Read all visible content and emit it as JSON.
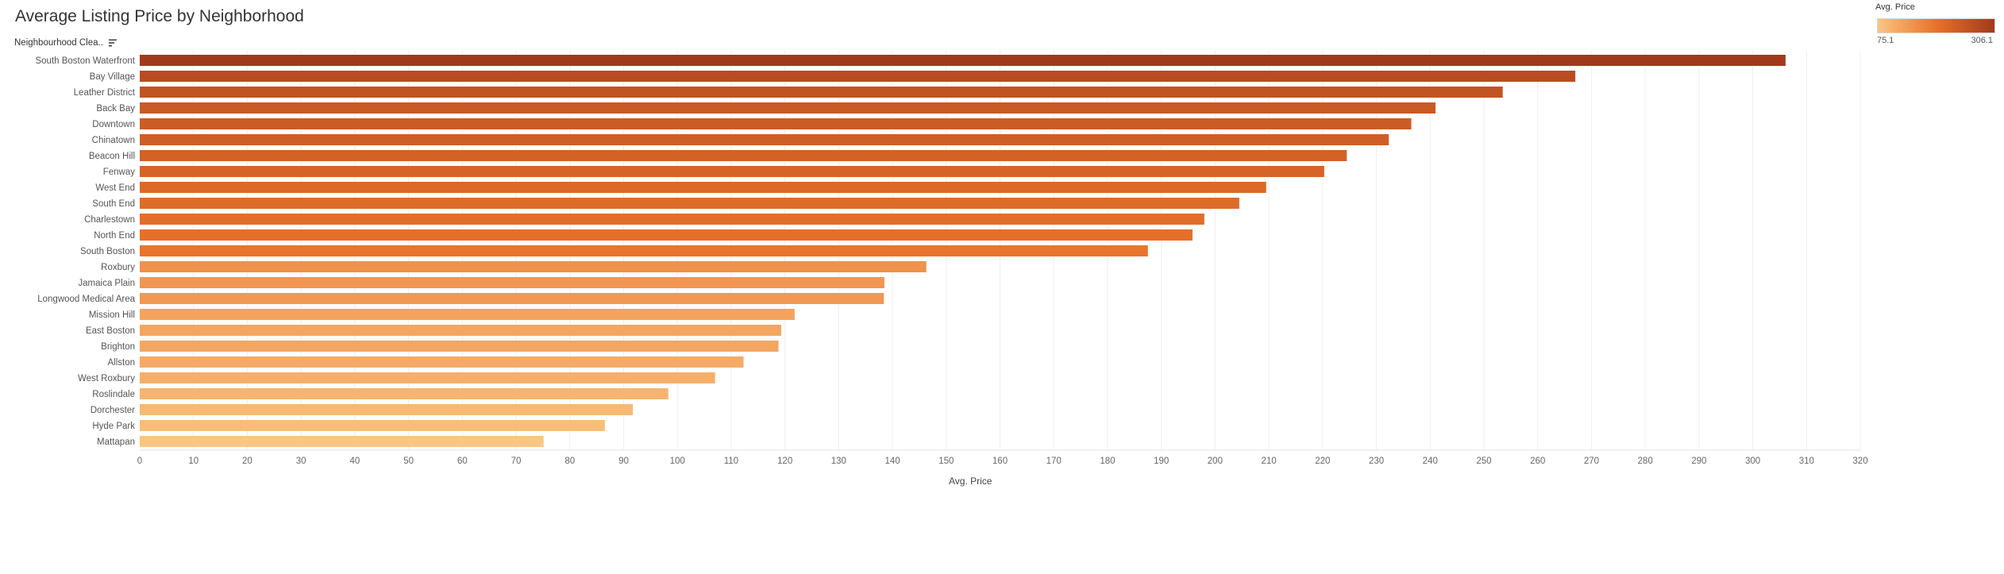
{
  "title": "Average Listing Price by Neighborhood",
  "row_header": "Neighbourhood Clea..",
  "legend": {
    "title": "Avg. Price",
    "min_label": "75.1",
    "max_label": "306.1",
    "color_low": "#fbc582",
    "color_mid": "#e8722a",
    "color_high": "#a13a1c"
  },
  "chart_data": {
    "type": "bar",
    "orientation": "horizontal",
    "title": "Average Listing Price by Neighborhood",
    "xlabel": "Avg. Price",
    "ylabel": "Neighbourhood Clea..",
    "xlim": [
      0,
      320
    ],
    "xticks": [
      0,
      10,
      20,
      30,
      40,
      50,
      60,
      70,
      80,
      90,
      100,
      110,
      120,
      130,
      140,
      150,
      160,
      170,
      180,
      190,
      200,
      210,
      220,
      230,
      240,
      250,
      260,
      270,
      280,
      290,
      300,
      310,
      320
    ],
    "grid": true,
    "color_range": [
      75.1,
      306.1
    ],
    "categories": [
      "South Boston Waterfront",
      "Bay Village",
      "Leather District",
      "Back Bay",
      "Downtown",
      "Chinatown",
      "Beacon Hill",
      "Fenway",
      "West End",
      "South End",
      "Charlestown",
      "North End",
      "South Boston",
      "Roxbury",
      "Jamaica Plain",
      "Longwood Medical Area",
      "Mission Hill",
      "East Boston",
      "Brighton",
      "Allston",
      "West Roxbury",
      "Roslindale",
      "Dorchester",
      "Hyde Park",
      "Mattapan"
    ],
    "values": [
      306.1,
      267.0,
      253.5,
      241.0,
      236.5,
      232.3,
      224.5,
      220.3,
      209.5,
      204.5,
      198.0,
      195.8,
      187.5,
      146.3,
      138.5,
      138.4,
      121.8,
      119.3,
      118.8,
      112.3,
      107.0,
      98.3,
      91.7,
      86.5,
      75.1
    ]
  }
}
